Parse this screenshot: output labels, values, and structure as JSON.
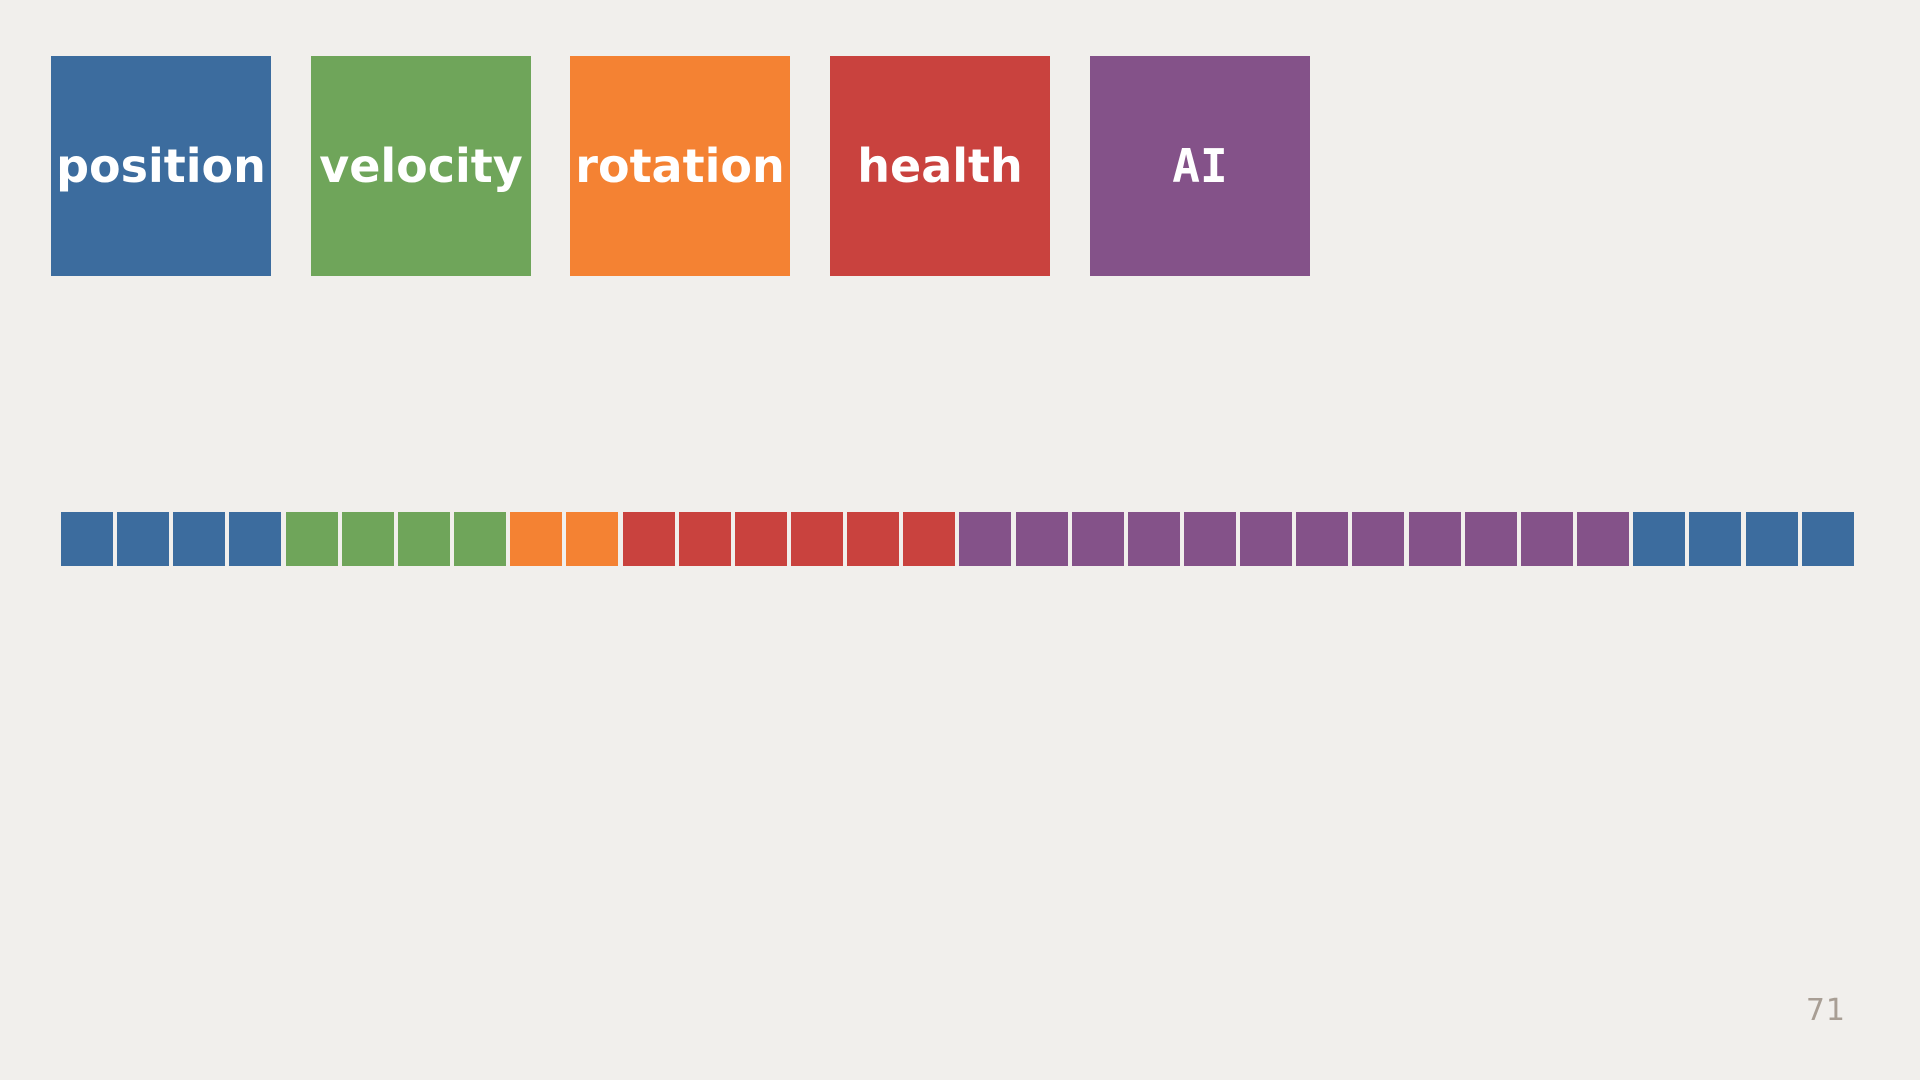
{
  "components": [
    {
      "key": "position",
      "label": "position",
      "color": "#3c6c9e"
    },
    {
      "key": "velocity",
      "label": "velocity",
      "color": "#6fa55a"
    },
    {
      "key": "rotation",
      "label": "rotation",
      "color": "#f48233"
    },
    {
      "key": "health",
      "label": "health",
      "color": "#c9423e"
    },
    {
      "key": "ai",
      "label": "AI",
      "color": "#845289"
    }
  ],
  "memory_strip": [
    "position",
    "position",
    "position",
    "position",
    "velocity",
    "velocity",
    "velocity",
    "velocity",
    "rotation",
    "rotation",
    "health",
    "health",
    "health",
    "health",
    "health",
    "health",
    "ai",
    "ai",
    "ai",
    "ai",
    "ai",
    "ai",
    "ai",
    "ai",
    "ai",
    "ai",
    "ai",
    "ai",
    "position",
    "position",
    "position",
    "position"
  ],
  "page_number": "71"
}
